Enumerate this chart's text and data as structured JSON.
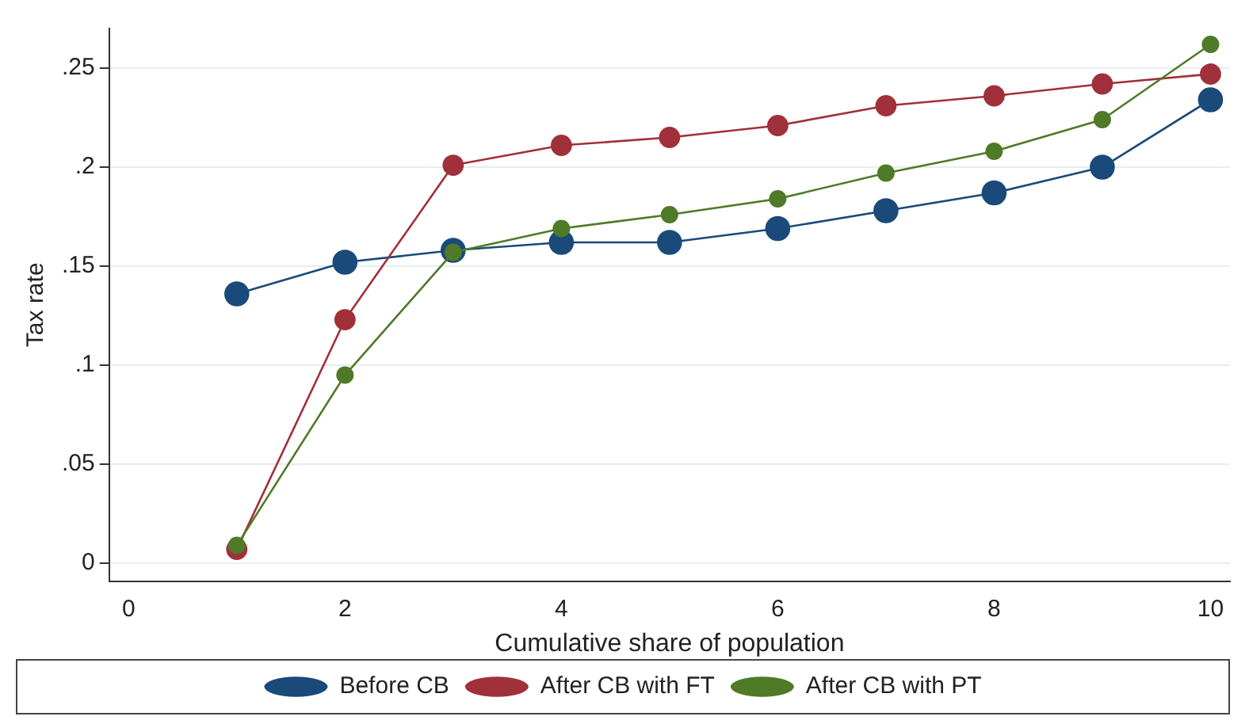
{
  "chart_data": {
    "type": "line",
    "xlabel": "Cumulative share of population",
    "ylabel": "Tax rate",
    "x": [
      1,
      2,
      3,
      4,
      5,
      6,
      7,
      8,
      9,
      10
    ],
    "series": [
      {
        "name": "Before CB",
        "color": "#1a4a7a",
        "values": [
          0.136,
          0.152,
          0.158,
          0.162,
          0.162,
          0.169,
          0.178,
          0.187,
          0.2,
          0.234
        ]
      },
      {
        "name": "After CB with FT",
        "color": "#a0303a",
        "values": [
          0.007,
          0.123,
          0.201,
          0.211,
          0.215,
          0.221,
          0.231,
          0.236,
          0.242,
          0.247
        ]
      },
      {
        "name": "After CB with PT",
        "color": "#4f7a28",
        "values": [
          0.009,
          0.095,
          0.157,
          0.169,
          0.176,
          0.184,
          0.197,
          0.208,
          0.224,
          0.262
        ]
      }
    ],
    "xlim": [
      -0.18,
      10.18
    ],
    "xticks": [
      0,
      2,
      4,
      6,
      8,
      10
    ],
    "ylim": [
      -0.009,
      0.27
    ],
    "yticks": [
      {
        "value": 0,
        "label": "0"
      },
      {
        "value": 0.05,
        "label": ".05"
      },
      {
        "value": 0.1,
        "label": ".1"
      },
      {
        "value": 0.15,
        "label": ".15"
      },
      {
        "value": 0.2,
        "label": ".2"
      },
      {
        "value": 0.25,
        "label": ".25"
      }
    ],
    "grid": "y",
    "legend": "bottom",
    "marker": "circle",
    "line_style": "solid"
  }
}
